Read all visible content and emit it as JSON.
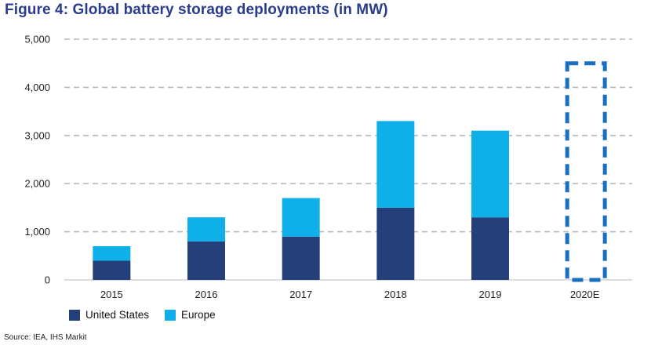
{
  "title": "Figure 4: Global battery storage deployments (in MW)",
  "source": "Source: IEA, IHS Markit",
  "colors": {
    "us": "#253f7a",
    "europe": "#0fb0ea",
    "estimate_outline": "#1a6fc0",
    "grid": "#b8b8b8"
  },
  "chart_data": {
    "type": "bar",
    "stacked": true,
    "categories": [
      "2015",
      "2016",
      "2017",
      "2018",
      "2019",
      "2020E"
    ],
    "series": [
      {
        "name": "United States",
        "values": [
          400,
          800,
          900,
          1500,
          1300,
          null
        ]
      },
      {
        "name": "Europe",
        "values": [
          300,
          500,
          800,
          1800,
          1800,
          null
        ]
      }
    ],
    "estimate": {
      "category": "2020E",
      "total": 4500,
      "style": "dashed-outline"
    },
    "ylim": [
      0,
      5000
    ],
    "yticks": [
      0,
      1000,
      2000,
      3000,
      4000,
      5000
    ],
    "ytick_labels": [
      "0",
      "1,000",
      "2,000",
      "3,000",
      "4,000",
      "5,000"
    ],
    "grid": true,
    "legend_position": "bottom-left"
  }
}
